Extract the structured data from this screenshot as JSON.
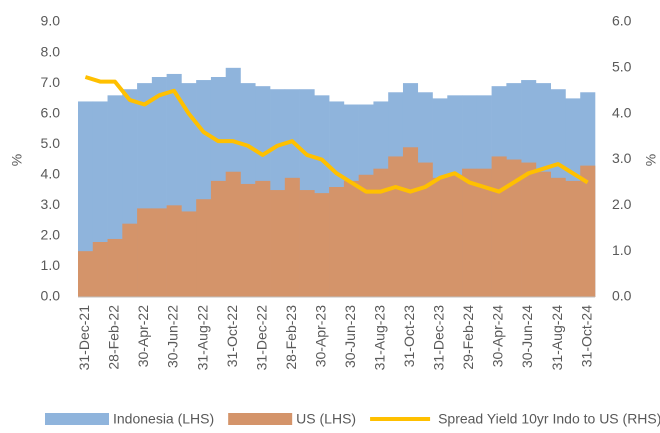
{
  "chart_data": {
    "type": "bar-line",
    "ylabel": "%",
    "y2label": "%",
    "categories": [
      "31-Dec-21",
      null,
      "28-Feb-22",
      null,
      "30-Apr-22",
      null,
      "30-Jun-22",
      null,
      "31-Aug-22",
      null,
      "31-Oct-22",
      null,
      "31-Dec-22",
      null,
      "28-Feb-23",
      null,
      "30-Apr-23",
      null,
      "30-Jun-23",
      null,
      "31-Aug-23",
      null,
      "31-Oct-23",
      null,
      "31-Dec-23",
      null,
      "29-Feb-24",
      null,
      "30-Apr-24",
      null,
      "30-Jun-24",
      null,
      "31-Aug-24",
      null,
      "31-Oct-24"
    ],
    "series": [
      {
        "name": "Indonesia (LHS)",
        "color": "#8fb4dc",
        "kind": "bar",
        "values": [
          6.4,
          6.4,
          6.6,
          6.8,
          7.0,
          7.2,
          7.3,
          7.0,
          7.1,
          7.2,
          7.5,
          7.0,
          6.9,
          6.8,
          6.8,
          6.8,
          6.6,
          6.4,
          6.3,
          6.3,
          6.4,
          6.7,
          7.0,
          6.7,
          6.5,
          6.6,
          6.6,
          6.6,
          6.9,
          7.0,
          7.1,
          7.0,
          6.8,
          6.5,
          6.7
        ]
      },
      {
        "name": "US (LHS)",
        "color": "#d4946a",
        "kind": "bar",
        "values": [
          1.5,
          1.8,
          1.9,
          2.4,
          2.9,
          2.9,
          3.0,
          2.8,
          3.2,
          3.8,
          4.1,
          3.7,
          3.8,
          3.5,
          3.9,
          3.5,
          3.4,
          3.6,
          3.8,
          4.0,
          4.2,
          4.6,
          4.9,
          4.4,
          3.9,
          4.0,
          4.2,
          4.2,
          4.6,
          4.5,
          4.4,
          4.1,
          3.9,
          3.8,
          4.3
        ]
      },
      {
        "name": "Spread Yield 10yr Indo to US (RHS)",
        "color": "#ffc000",
        "kind": "line",
        "axis": "y2",
        "values": [
          4.8,
          4.7,
          4.7,
          4.3,
          4.2,
          4.4,
          4.5,
          4.0,
          3.6,
          3.4,
          3.4,
          3.3,
          3.1,
          3.3,
          3.4,
          3.1,
          3.0,
          2.7,
          2.5,
          2.3,
          2.3,
          2.4,
          2.3,
          2.4,
          2.6,
          2.7,
          2.5,
          2.4,
          2.3,
          2.5,
          2.7,
          2.8,
          2.9,
          2.7,
          2.5
        ]
      }
    ],
    "ylim": [
      0,
      9
    ],
    "yticks": [
      {
        "value": 0,
        "label": "0.0"
      },
      {
        "value": 1,
        "label": "1.0"
      },
      {
        "value": 2,
        "label": "2.0"
      },
      {
        "value": 3,
        "label": "3.0"
      },
      {
        "value": 4,
        "label": "4.0"
      },
      {
        "value": 5,
        "label": "5.0"
      },
      {
        "value": 6,
        "label": "6.0"
      },
      {
        "value": 7,
        "label": "7.0"
      },
      {
        "value": 8,
        "label": "8.0"
      },
      {
        "value": 9,
        "label": "9.0"
      }
    ],
    "y2lim": [
      0,
      6
    ],
    "y2ticks": [
      {
        "value": 0,
        "label": "0.0"
      },
      {
        "value": 1,
        "label": "1.0"
      },
      {
        "value": 2,
        "label": "2.0"
      },
      {
        "value": 3,
        "label": "3.0"
      },
      {
        "value": 4,
        "label": "4.0"
      },
      {
        "value": 5,
        "label": "5.0"
      },
      {
        "value": 6,
        "label": "6.0"
      }
    ],
    "legend": "bottom"
  }
}
